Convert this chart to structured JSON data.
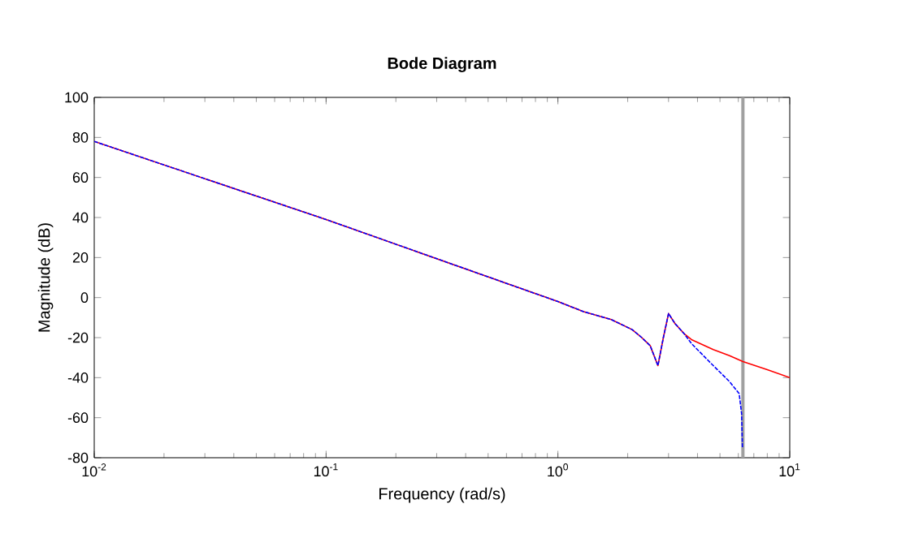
{
  "chart_data": {
    "type": "line",
    "title": "Bode Diagram",
    "xlabel": "Frequency (rad/s)",
    "ylabel": "Magnitude (dB)",
    "log": "x",
    "grid": false,
    "marker": "none",
    "xlim": [
      0.01,
      10
    ],
    "xticks": [
      {
        "value": 0.01,
        "label": "10$^{-2}$"
      },
      {
        "value": 0.1,
        "label": "10$^{-1}$"
      },
      {
        "value": 1,
        "label": "10$^{0}$"
      },
      {
        "value": 10,
        "label": "10$^{1}$"
      }
    ],
    "ylim": [
      -80,
      100
    ],
    "yticks": [
      -80,
      -60,
      -40,
      -20,
      0,
      20,
      40,
      60,
      80,
      100
    ],
    "ref_lines": [
      {
        "axis": "x",
        "value": 6.28,
        "color": "#a0a0a0"
      }
    ],
    "series": [
      {
        "color": "#ff0000",
        "line_style": "solid",
        "x": [
          0.01,
          0.1,
          1,
          1.29,
          1.7,
          2.09,
          2.3,
          2.5,
          2.7,
          2.85,
          3.0,
          3.2,
          3.5,
          3.77,
          4.68,
          5.5,
          6.28,
          8,
          10
        ],
        "values": [
          78,
          39,
          -2,
          -7,
          -11,
          -16,
          -20,
          -24,
          -34,
          -20,
          -8,
          -13,
          -18,
          -21,
          -26,
          -29,
          -32,
          -36,
          -40
        ]
      },
      {
        "color": "#0000ff",
        "line_style": "dashed",
        "x": [
          0.01,
          0.1,
          1,
          1.29,
          1.7,
          2.09,
          2.3,
          2.5,
          2.7,
          2.85,
          3.0,
          3.2,
          3.5,
          3.77,
          4.68,
          5.5,
          6.05,
          6.2,
          6.25
        ],
        "values": [
          78,
          39,
          -2,
          -7,
          -11,
          -16,
          -20,
          -24,
          -34,
          -20,
          -8,
          -13,
          -18,
          -23,
          -34,
          -42,
          -48,
          -58,
          -75
        ]
      }
    ]
  }
}
